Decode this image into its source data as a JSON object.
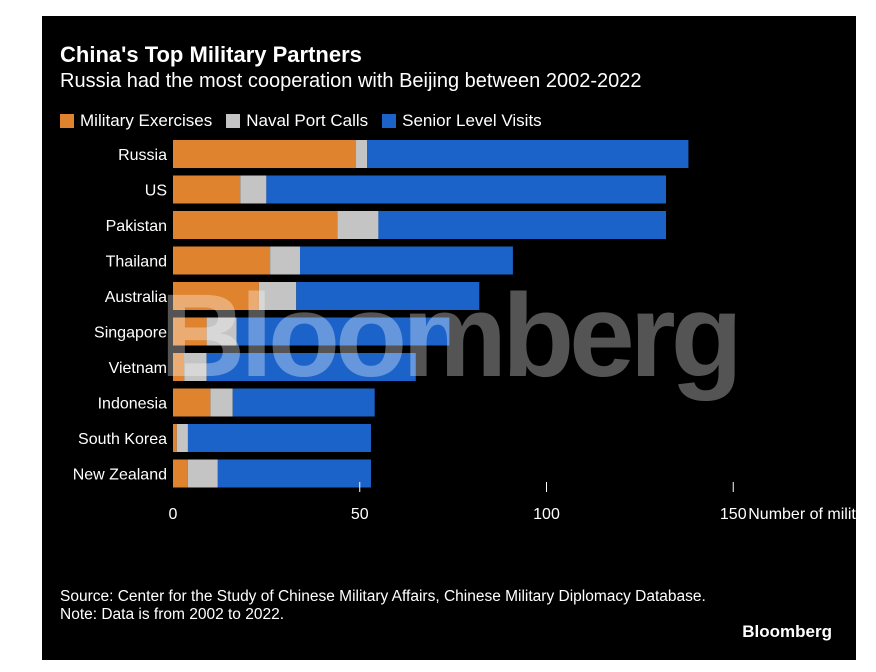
{
  "header": {
    "title": "China's Top Military Partners",
    "subtitle": "Russia had the most cooperation with Beijing between 2002-2022"
  },
  "legend": [
    {
      "label": "Military Exercises",
      "color": "#e0832e"
    },
    {
      "label": "Naval Port Calls",
      "color": "#c4c4c4"
    },
    {
      "label": "Senior Level Visits",
      "color": "#1c63c9"
    }
  ],
  "chart_data": {
    "type": "bar",
    "orientation": "horizontal",
    "stacked": true,
    "title": "China's Top Military Partners",
    "subtitle": "Russia had the most cooperation with Beijing between 2002-2022",
    "categories": [
      "Russia",
      "US",
      "Pakistan",
      "Thailand",
      "Australia",
      "Singapore",
      "Vietnam",
      "Indonesia",
      "South Korea",
      "New Zealand"
    ],
    "series": [
      {
        "name": "Military Exercises",
        "color": "#e0832e",
        "values": [
          49,
          18,
          44,
          26,
          23,
          9,
          3,
          10,
          1,
          4
        ]
      },
      {
        "name": "Naval Port Calls",
        "color": "#c4c4c4",
        "values": [
          3,
          7,
          11,
          8,
          10,
          8,
          6,
          6,
          3,
          8
        ]
      },
      {
        "name": "Senior Level Visits",
        "color": "#1c63c9",
        "values": [
          86,
          107,
          77,
          57,
          49,
          57,
          56,
          38,
          49,
          41
        ]
      }
    ],
    "xlabel": "Number of military activities",
    "xticks": [
      0,
      50,
      100,
      150
    ],
    "xlim": [
      0,
      150
    ],
    "legend_position": "top-left",
    "grid": false
  },
  "footer": {
    "source": "Source: Center for the Study of Chinese Military Affairs, Chinese Military Diplomacy Database.",
    "note": "Note: Data is from 2002 to 2022.",
    "brand": "Bloomberg"
  },
  "watermark": "Bloomberg"
}
